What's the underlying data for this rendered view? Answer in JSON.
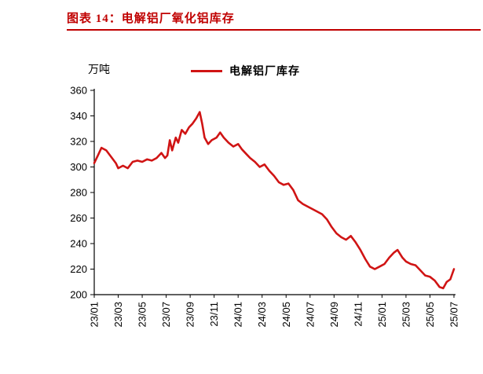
{
  "header": {
    "title": "图表 14：电解铝厂氧化铝库存",
    "accent_color": "#C00000"
  },
  "chart_data": {
    "type": "line",
    "title": "电解铝厂氧化铝库存",
    "unit_label": "万吨",
    "legend": [
      {
        "label": "电解铝厂库存",
        "color": "#D01414"
      }
    ],
    "legend_position": "top-center",
    "grid": false,
    "axis_color": "#000000",
    "label_color": "#000000",
    "ylim": [
      200,
      360
    ],
    "ytick_step": 20,
    "x_max": 30,
    "x_tick_positions": [
      0,
      2,
      4,
      6,
      8,
      10,
      12,
      14,
      16,
      18,
      20,
      22,
      24,
      26,
      28,
      30
    ],
    "x_tick_labels": [
      "23/01",
      "23/03",
      "23/05",
      "23/07",
      "23/09",
      "23/11",
      "24/01",
      "24/03",
      "24/05",
      "24/07",
      "24/09",
      "24/11",
      "25/01",
      "25/03",
      "25/05",
      "25/07"
    ],
    "series": [
      {
        "name": "电解铝厂库存",
        "color": "#D01414",
        "stroke_width": 2.6,
        "points": [
          [
            0,
            303
          ],
          [
            0.3,
            309
          ],
          [
            0.6,
            315
          ],
          [
            1,
            313
          ],
          [
            1.4,
            308
          ],
          [
            1.8,
            303
          ],
          [
            2,
            299
          ],
          [
            2.4,
            301
          ],
          [
            2.8,
            299
          ],
          [
            3.2,
            304
          ],
          [
            3.6,
            305
          ],
          [
            4,
            304
          ],
          [
            4.4,
            306
          ],
          [
            4.8,
            305
          ],
          [
            5.2,
            307
          ],
          [
            5.6,
            311
          ],
          [
            5.9,
            307
          ],
          [
            6.1,
            309
          ],
          [
            6.3,
            321
          ],
          [
            6.5,
            313
          ],
          [
            6.8,
            323
          ],
          [
            7,
            319
          ],
          [
            7.3,
            329
          ],
          [
            7.6,
            326
          ],
          [
            7.9,
            331
          ],
          [
            8.2,
            334
          ],
          [
            8.5,
            338
          ],
          [
            8.8,
            343
          ],
          [
            9,
            334
          ],
          [
            9.2,
            323
          ],
          [
            9.5,
            318
          ],
          [
            9.8,
            321
          ],
          [
            10.2,
            323
          ],
          [
            10.5,
            327
          ],
          [
            10.8,
            323
          ],
          [
            11.2,
            319
          ],
          [
            11.6,
            316
          ],
          [
            12,
            318
          ],
          [
            12.3,
            314
          ],
          [
            12.7,
            310
          ],
          [
            13,
            307
          ],
          [
            13.4,
            304
          ],
          [
            13.8,
            300
          ],
          [
            14.2,
            302
          ],
          [
            14.6,
            297
          ],
          [
            15,
            293
          ],
          [
            15.4,
            288
          ],
          [
            15.8,
            286
          ],
          [
            16.2,
            287
          ],
          [
            16.6,
            282
          ],
          [
            17,
            274
          ],
          [
            17.4,
            271
          ],
          [
            17.8,
            269
          ],
          [
            18.2,
            267
          ],
          [
            18.6,
            265
          ],
          [
            19,
            263
          ],
          [
            19.4,
            259
          ],
          [
            19.8,
            253
          ],
          [
            20.2,
            248
          ],
          [
            20.6,
            245
          ],
          [
            21,
            243
          ],
          [
            21.4,
            246
          ],
          [
            21.8,
            241
          ],
          [
            22.2,
            235
          ],
          [
            22.6,
            228
          ],
          [
            23,
            222
          ],
          [
            23.4,
            220
          ],
          [
            23.8,
            222
          ],
          [
            24.2,
            224
          ],
          [
            24.6,
            229
          ],
          [
            25,
            233
          ],
          [
            25.3,
            235
          ],
          [
            25.7,
            229
          ],
          [
            26,
            226
          ],
          [
            26.4,
            224
          ],
          [
            26.8,
            223
          ],
          [
            27.2,
            219
          ],
          [
            27.6,
            215
          ],
          [
            28,
            214
          ],
          [
            28.4,
            211
          ],
          [
            28.8,
            206
          ],
          [
            29.1,
            205
          ],
          [
            29.4,
            210
          ],
          [
            29.7,
            212
          ],
          [
            30,
            220
          ]
        ]
      }
    ]
  }
}
